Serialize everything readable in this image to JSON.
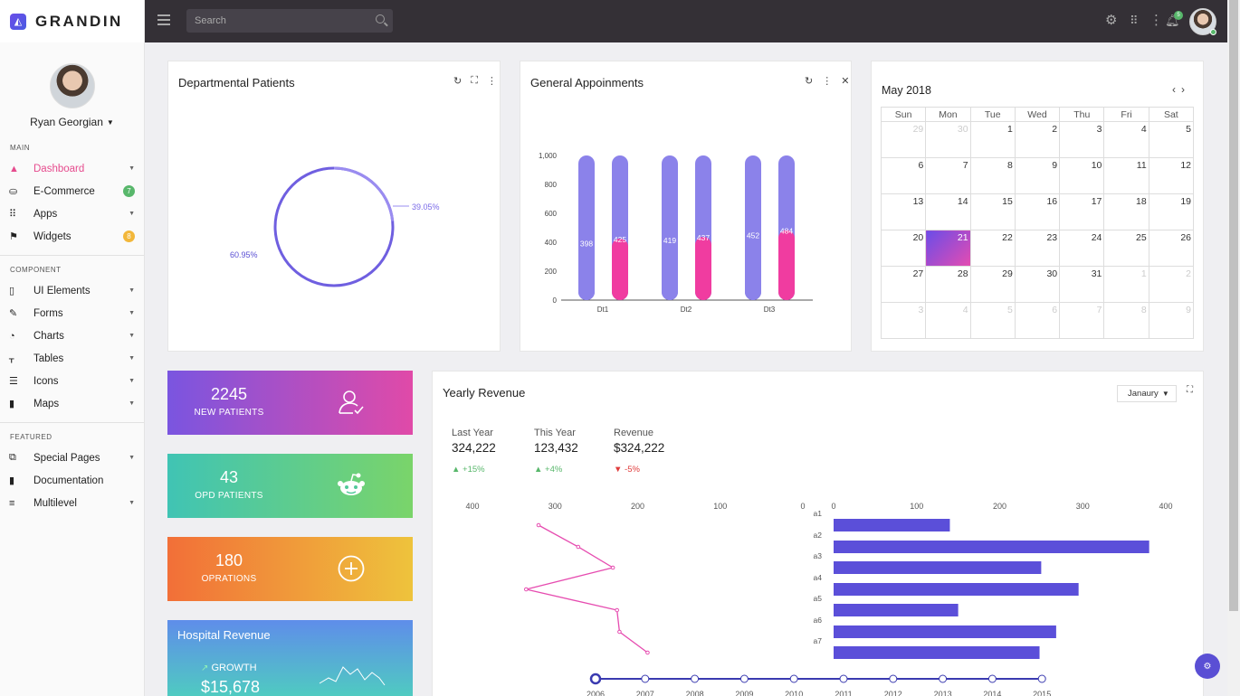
{
  "app": {
    "logo": "GRANDIN"
  },
  "topbar": {
    "search_placeholder": "Search",
    "notification_count": "5"
  },
  "profile": {
    "name": "Ryan Georgian"
  },
  "sidebar": {
    "main_label": "MAIN",
    "main_items": [
      {
        "label": "Dashboard",
        "icon": "dashboard-icon",
        "active": true
      },
      {
        "label": "E-Commerce",
        "icon": "basket-icon",
        "badge": "7"
      },
      {
        "label": "Apps",
        "icon": "grid-icon"
      },
      {
        "label": "Widgets",
        "icon": "flag-icon",
        "badge": "8"
      }
    ],
    "component_label": "COMPONENT",
    "component_items": [
      {
        "label": "UI Elements",
        "icon": "ui-elements-icon"
      },
      {
        "label": "Forms",
        "icon": "pencil-icon"
      },
      {
        "label": "Charts",
        "icon": "pie-chart-icon"
      },
      {
        "label": "Tables",
        "icon": "table-icon"
      },
      {
        "label": "Icons",
        "icon": "icons-icon"
      },
      {
        "label": "Maps",
        "icon": "map-icon"
      }
    ],
    "featured_label": "FEATURED",
    "featured_items": [
      {
        "label": "Special Pages",
        "icon": "pages-icon"
      },
      {
        "label": "Documentation",
        "icon": "book-icon"
      },
      {
        "label": "Multilevel",
        "icon": "multilevel-icon"
      }
    ]
  },
  "departmental": {
    "title": "Departmental Patients",
    "chart_data": {
      "type": "pie",
      "slices": [
        {
          "label": "39.05%",
          "value": 39.05
        },
        {
          "label": "60.95%",
          "value": 60.95
        }
      ]
    }
  },
  "appointments": {
    "title": "General Appoinments",
    "chart_data": {
      "type": "bar",
      "categories": [
        "Dt1",
        "Dt2",
        "Dt3"
      ],
      "ylim": [
        0,
        1000
      ],
      "yticks": [
        "0",
        "200",
        "400",
        "600",
        "800",
        "1,000"
      ],
      "series": [
        {
          "values": [
            398,
            419,
            452
          ]
        },
        {
          "values": [
            425,
            437,
            484
          ]
        }
      ]
    }
  },
  "calendar": {
    "title": "May 2018",
    "days": [
      "Sun",
      "Mon",
      "Tue",
      "Wed",
      "Thu",
      "Fri",
      "Sat"
    ],
    "weeks": [
      [
        "29",
        "30",
        "1",
        "2",
        "3",
        "4",
        "5"
      ],
      [
        "6",
        "7",
        "8",
        "9",
        "10",
        "11",
        "12"
      ],
      [
        "13",
        "14",
        "15",
        "16",
        "17",
        "18",
        "19"
      ],
      [
        "20",
        "21",
        "22",
        "23",
        "24",
        "25",
        "26"
      ],
      [
        "27",
        "28",
        "29",
        "30",
        "31",
        "1",
        "2"
      ],
      [
        "3",
        "4",
        "5",
        "6",
        "7",
        "8",
        "9"
      ]
    ],
    "today": "21"
  },
  "stats": [
    {
      "value": "2245",
      "label": "NEW PATIENTS"
    },
    {
      "value": "43",
      "label": "OPD PATIENTS"
    },
    {
      "value": "180",
      "label": "OPRATIONS"
    }
  ],
  "hospital_revenue": {
    "title": "Hospital Revenue",
    "growth_label": "GROWTH",
    "value": "$15,678"
  },
  "yearly_revenue": {
    "title": "Yearly Revenue",
    "month": "Janaury",
    "summary": [
      {
        "label": "Last Year",
        "value": "324,222",
        "change": "+15%",
        "trend": "up"
      },
      {
        "label": "This Year",
        "value": "123,432",
        "change": "+4%",
        "trend": "up"
      },
      {
        "label": "Revenue",
        "value": "$324,222",
        "change": "-5%",
        "trend": "down"
      }
    ],
    "line_chart": {
      "type": "line",
      "x_ticks": [
        "400",
        "300",
        "200",
        "100",
        "0"
      ],
      "xlim": [
        400,
        0
      ],
      "values": [
        320,
        272,
        230,
        335,
        225,
        222,
        188
      ]
    },
    "bar_chart": {
      "type": "bar",
      "categories": [
        "a1",
        "a2",
        "a3",
        "a4",
        "a5",
        "a6",
        "a7"
      ],
      "x_ticks": [
        "0",
        "100",
        "200",
        "300",
        "400"
      ],
      "xlim": [
        0,
        400
      ],
      "values": [
        140,
        380,
        250,
        295,
        150,
        268,
        248
      ]
    },
    "timeline": [
      "2006",
      "2007",
      "2008",
      "2009",
      "2010",
      "2011",
      "2012",
      "2013",
      "2014",
      "2015"
    ],
    "timeline_selected": "2006"
  }
}
